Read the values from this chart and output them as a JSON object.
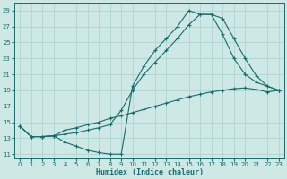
{
  "xlabel": "Humidex (Indice chaleur)",
  "bg_color": "#cde8e5",
  "grid_color": "#afd4d0",
  "line_color": "#1a6b6b",
  "xlim": [
    -0.5,
    23.5
  ],
  "ylim": [
    10.5,
    30.0
  ],
  "yticks": [
    11,
    13,
    15,
    17,
    19,
    21,
    23,
    25,
    27,
    29
  ],
  "xticks": [
    0,
    1,
    2,
    3,
    4,
    5,
    6,
    7,
    8,
    9,
    10,
    11,
    12,
    13,
    14,
    15,
    16,
    17,
    18,
    19,
    20,
    21,
    22,
    23
  ],
  "line1_x": [
    0,
    1,
    2,
    3,
    4,
    5,
    6,
    7,
    8,
    9,
    10,
    11,
    12,
    13,
    14,
    15,
    16,
    17,
    18,
    19,
    20,
    21,
    22,
    23
  ],
  "line1_y": [
    14.5,
    13.2,
    13.2,
    13.3,
    12.5,
    12.0,
    11.5,
    11.2,
    11.0,
    11.0,
    19.5,
    22.0,
    24.0,
    25.5,
    27.0,
    29.0,
    28.5,
    28.5,
    28.0,
    25.5,
    23.0,
    20.8,
    19.5,
    19.0
  ],
  "line2_x": [
    0,
    1,
    2,
    3,
    4,
    5,
    6,
    7,
    8,
    9,
    10,
    11,
    12,
    13,
    14,
    15,
    16,
    17,
    18,
    19,
    20,
    21,
    22,
    23
  ],
  "line2_y": [
    14.5,
    13.2,
    13.2,
    13.3,
    13.5,
    13.7,
    14.0,
    14.3,
    14.7,
    16.5,
    19.0,
    21.0,
    22.5,
    24.0,
    25.5,
    27.2,
    28.5,
    28.5,
    26.0,
    23.0,
    21.0,
    20.0,
    19.5,
    19.0
  ],
  "line3_x": [
    0,
    1,
    2,
    3,
    4,
    5,
    6,
    7,
    8,
    9,
    10,
    11,
    12,
    13,
    14,
    15,
    16,
    17,
    18,
    19,
    20,
    21,
    22,
    23
  ],
  "line3_y": [
    14.5,
    13.2,
    13.2,
    13.3,
    14.0,
    14.3,
    14.7,
    15.0,
    15.5,
    15.8,
    16.2,
    16.6,
    17.0,
    17.4,
    17.8,
    18.2,
    18.5,
    18.8,
    19.0,
    19.2,
    19.3,
    19.1,
    18.8,
    19.0
  ]
}
